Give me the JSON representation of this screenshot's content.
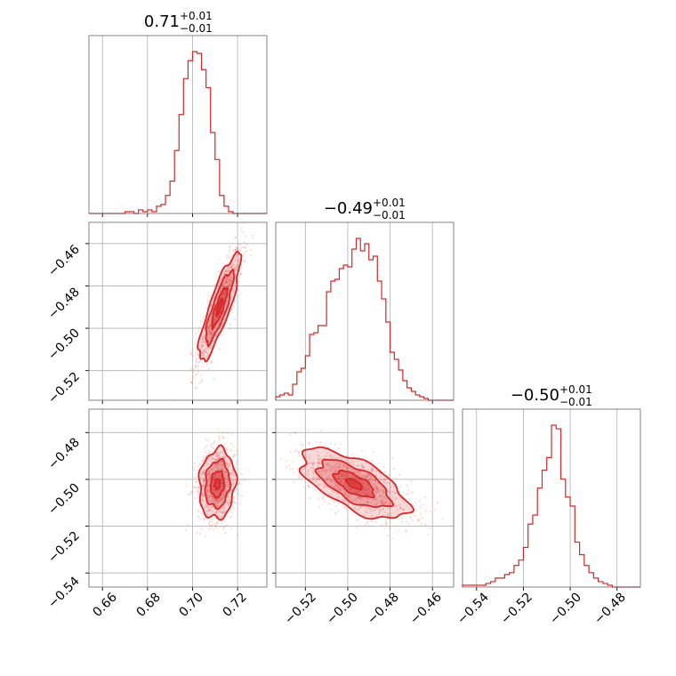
{
  "chart_data": {
    "type": "corner",
    "colors": {
      "series": "#d62728",
      "grid": "#b0b0b0",
      "frame": "#666666"
    },
    "grid": true,
    "parameters": [
      {
        "title": {
          "median": "0.71",
          "upper": "+0.01",
          "lower": "−0.01"
        },
        "range": [
          0.654,
          0.733
        ],
        "ticks": [
          "0.66",
          "0.68",
          "0.70",
          "0.72"
        ],
        "tick_values": [
          0.66,
          0.68,
          0.7,
          0.72
        ],
        "hist_edges_start": 0.654,
        "hist_bin_width": 0.002,
        "hist_counts": [
          0,
          0,
          0,
          0,
          0,
          0,
          0,
          0,
          1,
          1,
          0,
          2,
          1,
          2,
          1,
          4,
          5,
          10,
          18,
          35,
          55,
          75,
          85,
          90,
          89,
          80,
          70,
          45,
          30,
          10,
          4,
          1,
          0,
          0,
          0,
          0,
          0,
          0,
          0,
          0
        ]
      },
      {
        "title": {
          "median": "−0.49",
          "upper": "+0.01",
          "lower": "−0.01"
        },
        "range": [
          -0.534,
          -0.45
        ],
        "ticks": [
          "−0.52",
          "−0.50",
          "−0.48",
          "−0.46",
          "−0.52",
          "−0.50",
          "−0.48",
          "−0.46"
        ],
        "tick_values": [
          -0.52,
          -0.5,
          -0.48,
          -0.46
        ],
        "hist_edges_start": -0.534,
        "hist_bin_width": 0.002,
        "hist_counts": [
          2,
          3,
          4,
          3,
          9,
          16,
          18,
          25,
          37,
          38,
          42,
          42,
          61,
          67,
          68,
          74,
          76,
          75,
          85,
          91,
          84,
          88,
          79,
          81,
          67,
          57,
          44,
          27,
          23,
          17,
          11,
          7,
          5,
          3,
          2,
          1,
          0,
          0,
          0,
          0,
          0,
          0
        ]
      },
      {
        "title": {
          "median": "−0.50",
          "upper": "+0.01",
          "lower": "−0.01"
        },
        "range": [
          -0.546,
          -0.47
        ],
        "ticks": [
          "−0.54",
          "−0.52",
          "−0.50",
          "−0.48",
          "−0.54",
          "−0.52",
          "−0.50",
          "−0.48"
        ],
        "tick_values": [
          -0.54,
          -0.52,
          -0.5,
          -0.48
        ],
        "hist_edges_start": -0.546,
        "hist_bin_width": 0.002,
        "hist_counts": [
          1,
          1,
          1,
          1,
          1,
          2,
          3,
          5,
          5,
          7,
          8,
          12,
          15,
          22,
          35,
          40,
          55,
          65,
          72,
          90,
          88,
          60,
          50,
          45,
          25,
          18,
          12,
          8,
          5,
          3,
          2,
          1,
          0,
          0,
          0,
          0,
          0,
          0
        ]
      }
    ],
    "pairs": [
      {
        "x": 0,
        "y": 1,
        "center": [
          0.712,
          -0.49
        ],
        "sd": [
          0.004,
          0.011
        ],
        "rho": 0.85
      },
      {
        "x": 0,
        "y": 2,
        "center": [
          0.711,
          -0.502
        ],
        "sd": [
          0.0035,
          0.0065
        ],
        "rho": 0.1
      },
      {
        "x": 1,
        "y": 2,
        "center": [
          -0.497,
          -0.502
        ],
        "sd": [
          0.011,
          0.0065
        ],
        "rho": -0.65
      }
    ]
  }
}
